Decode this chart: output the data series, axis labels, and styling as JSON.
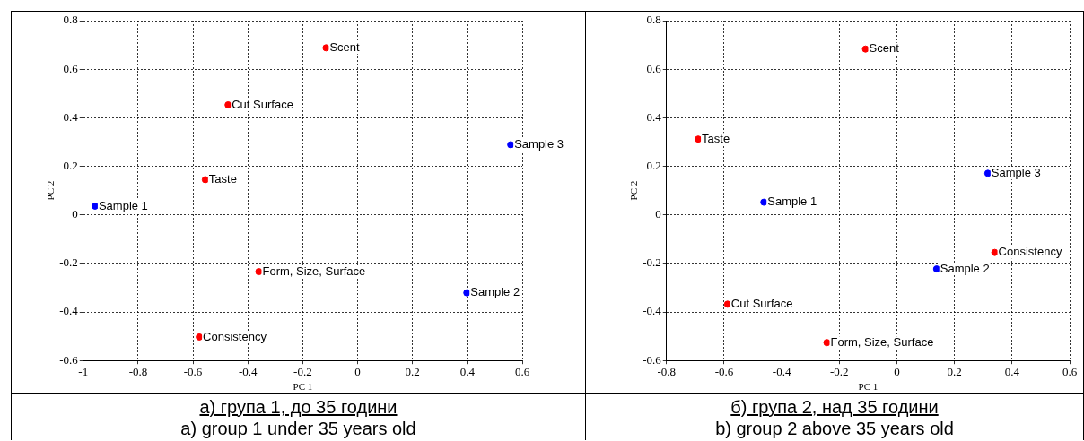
{
  "chart_data": [
    {
      "type": "scatter",
      "xlabel": "PC 1",
      "ylabel": "PC 2",
      "xlim": [
        -1,
        0.6
      ],
      "xticks": [
        -1,
        -0.8,
        -0.6,
        -0.4,
        -0.2,
        0,
        0.2,
        0.4,
        0.6
      ],
      "ylim": [
        -0.6,
        0.8
      ],
      "yticks": [
        -0.6,
        -0.4,
        -0.2,
        0,
        0.2,
        0.4,
        0.6,
        0.8
      ],
      "grid": true,
      "marker": "circle",
      "series": [
        {
          "color": "#0000ff",
          "x": [
            -0.957,
            0.398,
            0.558
          ],
          "values": [
            0.036,
            -0.321,
            0.289
          ]
        },
        {
          "color": "#ff0000",
          "x": [
            -0.115,
            -0.472,
            -0.555,
            -0.36,
            -0.577
          ],
          "values": [
            0.688,
            0.453,
            0.145,
            -0.234,
            -0.503
          ]
        }
      ],
      "annotations": [
        {
          "text": "Sample 1",
          "x": -0.957,
          "y": 0.036
        },
        {
          "text": "Sample 2",
          "x": 0.398,
          "y": -0.321
        },
        {
          "text": "Sample 3",
          "x": 0.558,
          "y": 0.289
        },
        {
          "text": "Scent",
          "x": -0.115,
          "y": 0.688
        },
        {
          "text": "Cut Surface",
          "x": -0.472,
          "y": 0.453
        },
        {
          "text": "Taste",
          "x": -0.555,
          "y": 0.145
        },
        {
          "text": "Form, Size, Surface",
          "x": -0.36,
          "y": -0.234
        },
        {
          "text": "Consistency",
          "x": -0.577,
          "y": -0.503
        },
        "а) група 1, до 35 години",
        "a) group 1 under 35 years old"
      ]
    },
    {
      "type": "scatter",
      "xlabel": "PC 1",
      "ylabel": "PC 2",
      "xlim": [
        -0.8,
        0.6
      ],
      "xticks": [
        -0.8,
        -0.6,
        -0.4,
        -0.2,
        0,
        0.2,
        0.4,
        0.6
      ],
      "ylim": [
        -0.6,
        0.8
      ],
      "yticks": [
        -0.6,
        -0.4,
        -0.2,
        0,
        0.2,
        0.4,
        0.6,
        0.8
      ],
      "grid": true,
      "marker": "circle",
      "series": [
        {
          "color": "#0000ff",
          "x": [
            -0.462,
            0.138,
            0.316
          ],
          "values": [
            0.052,
            -0.223,
            0.171
          ]
        },
        {
          "color": "#ff0000",
          "x": [
            -0.109,
            -0.69,
            0.34,
            -0.588,
            -0.243
          ],
          "values": [
            0.683,
            0.312,
            -0.155,
            -0.368,
            -0.526
          ]
        }
      ],
      "annotations": [
        {
          "text": "Sample 1",
          "x": -0.462,
          "y": 0.052
        },
        {
          "text": "Sample 2",
          "x": 0.138,
          "y": -0.223
        },
        {
          "text": "Sample 3",
          "x": 0.316,
          "y": 0.171
        },
        {
          "text": "Scent",
          "x": -0.109,
          "y": 0.683
        },
        {
          "text": "Taste",
          "x": -0.69,
          "y": 0.312
        },
        {
          "text": "Consistency",
          "x": 0.34,
          "y": -0.155
        },
        {
          "text": "Cut Surface",
          "x": -0.588,
          "y": -0.368
        },
        {
          "text": "Form, Size, Surface",
          "x": -0.243,
          "y": -0.526
        },
        "б) група 2, над 35 години",
        "b) group 2 above 35 years old"
      ]
    }
  ]
}
